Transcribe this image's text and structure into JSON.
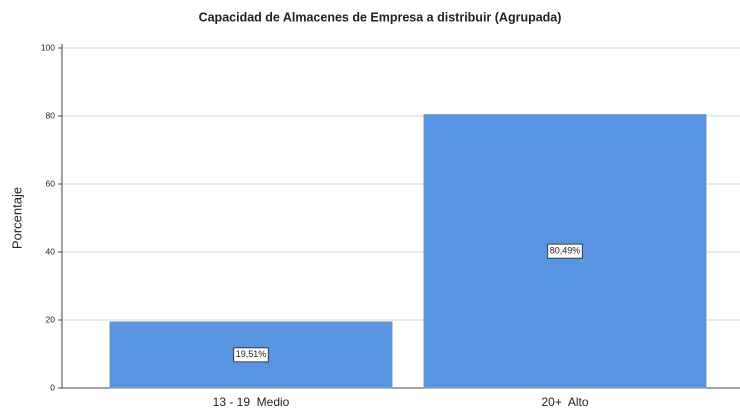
{
  "chart_data": {
    "type": "bar",
    "title": "Capacidad de Almacenes de Empresa a distribuir (Agrupada)",
    "y_label": "Porcentaje",
    "categories": [
      "13 - 19  Medio",
      "20+  Alto"
    ],
    "values": [
      19.51,
      80.49
    ],
    "value_labels": [
      "19,51%",
      "80,49%"
    ],
    "color": "#5894e2",
    "ylim": [
      0,
      100
    ],
    "yticks": [
      0,
      20,
      40,
      60,
      80,
      100
    ],
    "grid": true
  }
}
